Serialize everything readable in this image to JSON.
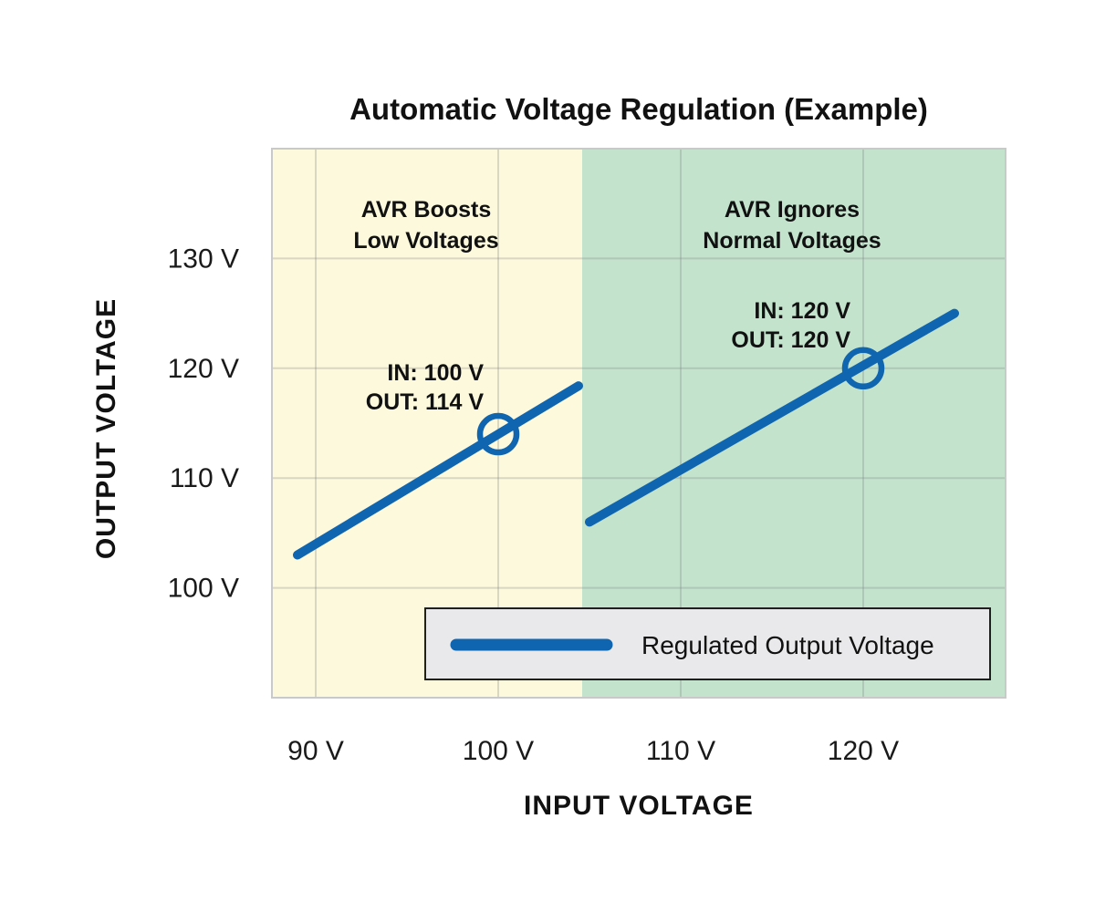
{
  "chart_data": {
    "type": "line",
    "title": "Automatic Voltage Regulation (Example)",
    "xlabel": "INPUT VOLTAGE",
    "ylabel": "OUTPUT VOLTAGE",
    "xlim": [
      87.6,
      127.8
    ],
    "ylim": [
      90,
      140
    ],
    "grid": true,
    "x_tick_values": [
      90,
      100,
      110,
      120
    ],
    "x_tick_labels": [
      "90 V",
      "100 V",
      "110 V",
      "120 V"
    ],
    "y_tick_values": [
      100,
      110,
      120,
      130
    ],
    "y_tick_labels": [
      "100 V",
      "110 V",
      "120 V",
      "130 V"
    ],
    "regions": [
      {
        "name": "boost",
        "label_lines": [
          "AVR Boosts",
          "Low Voltages"
        ],
        "x_start": 87.6,
        "x_end": 104.6,
        "color": "#fdf9dd"
      },
      {
        "name": "ignore",
        "label_lines": [
          "AVR Ignores",
          "Normal Voltages"
        ],
        "x_start": 104.6,
        "x_end": 127.8,
        "color": "#c3e3cd"
      }
    ],
    "series": [
      {
        "name": "Regulated Output Voltage",
        "color": "#1065b0",
        "segments": [
          {
            "points": [
              [
                89,
                103
              ],
              [
                104.4,
                118.4
              ]
            ]
          },
          {
            "points": [
              [
                105,
                106
              ],
              [
                125,
                125
              ]
            ]
          }
        ]
      }
    ],
    "markers": [
      {
        "x": 100,
        "y": 114,
        "style": "open-circle"
      },
      {
        "x": 120,
        "y": 120,
        "style": "open-circle"
      }
    ],
    "annotations": [
      {
        "lines": [
          "IN: 100 V",
          "OUT: 114 V"
        ],
        "color": "#1065b0",
        "anchor": {
          "x": 100,
          "y": 114
        }
      },
      {
        "lines": [
          "IN: 120 V",
          "OUT: 120 V"
        ],
        "color": "#1065b0",
        "anchor": {
          "x": 120,
          "y": 120
        }
      }
    ],
    "legend": {
      "position": "lower center",
      "entries": [
        {
          "label": "Regulated Output Voltage",
          "color": "#1065b0"
        }
      ]
    }
  },
  "colors": {
    "line_blue": "#1065b0",
    "region_yellow": "#fdf9dd",
    "region_green": "#c3e3cd",
    "grid": "rgba(125,125,125,0.28)",
    "plot_border": "#c9c9c9",
    "legend_fill": "#e9e9eb",
    "legend_border": "#1f1f1f",
    "text": "#111111"
  }
}
